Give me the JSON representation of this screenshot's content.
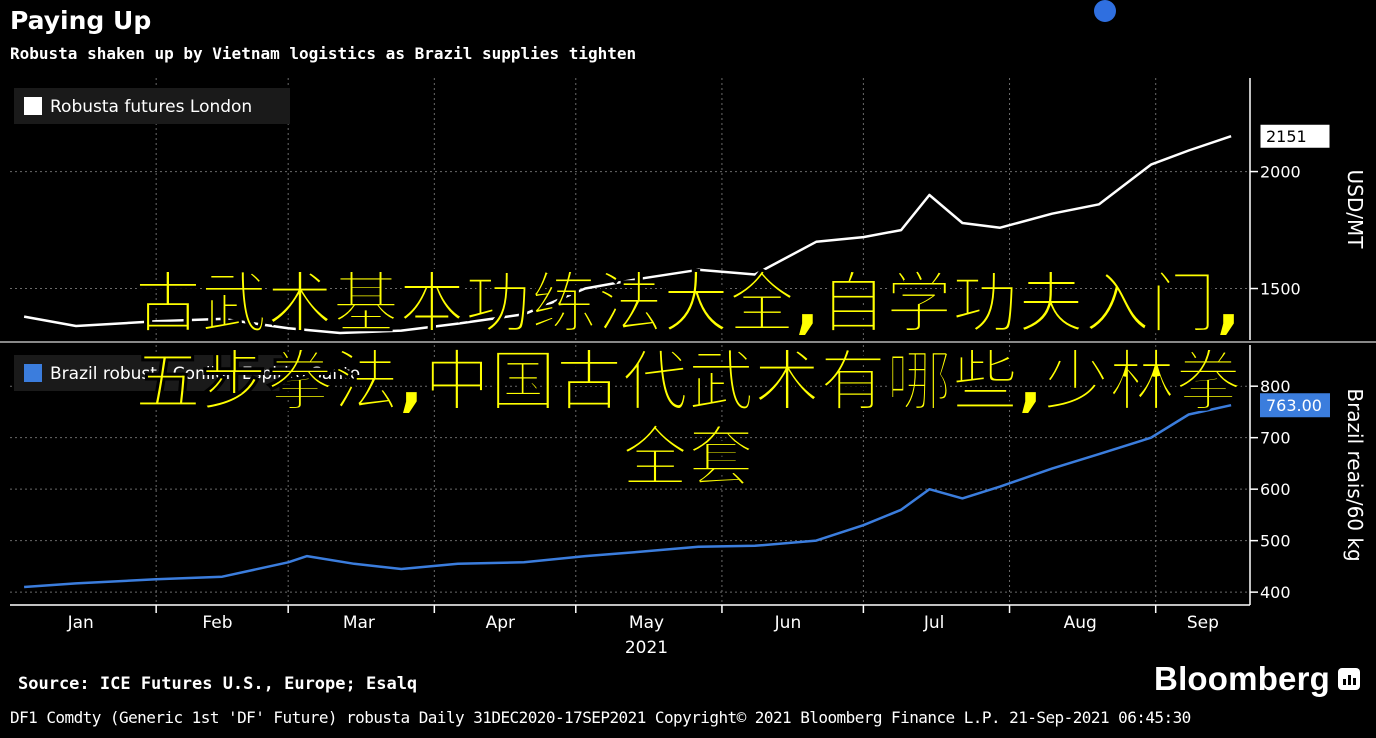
{
  "header": {
    "title": "Paying Up",
    "subtitle": "Robusta shaken up by Vietnam logistics as Brazil supplies tighten"
  },
  "overlay": {
    "line1": "古武术基本功练法大全,自学功夫入门,",
    "line2": "五步拳法,中国古代武术有哪些,少林拳",
    "line3": "全套"
  },
  "footer": {
    "source": "Source: ICE Futures U.S., Europe; Esalq",
    "brand": "Bloomberg",
    "meta": "DF1 Comdty (Generic 1st 'DF' Future) robusta  Daily 31DEC2020-17SEP2021  Copyright© 2021 Bloomberg Finance L.P.  21-Sep-2021 06:45:30"
  },
  "colors": {
    "background": "#000000",
    "london_line": "#ffffff",
    "brazil_line": "#3b7ddd",
    "overlay_text": "#ffff00",
    "grid": "#6a6a6a"
  },
  "chart_data": [
    {
      "type": "line",
      "legend": "Robusta futures London",
      "ylabel": "USD/MT",
      "yticks": [
        1500,
        2000
      ],
      "ylim": [
        1280,
        2400
      ],
      "last_value_label": "2151",
      "x": [
        "2021-01-04",
        "2021-01-15",
        "2021-02-01",
        "2021-02-15",
        "2021-03-01",
        "2021-03-12",
        "2021-03-25",
        "2021-04-06",
        "2021-04-20",
        "2021-05-03",
        "2021-05-14",
        "2021-05-27",
        "2021-06-08",
        "2021-06-21",
        "2021-07-01",
        "2021-07-09",
        "2021-07-15",
        "2021-07-22",
        "2021-07-30",
        "2021-08-10",
        "2021-08-20",
        "2021-08-31",
        "2021-09-08",
        "2021-09-17"
      ],
      "series": [
        {
          "name": "Robusta futures London",
          "values": [
            1380,
            1340,
            1360,
            1370,
            1330,
            1310,
            1320,
            1350,
            1390,
            1500,
            1540,
            1580,
            1560,
            1700,
            1720,
            1750,
            1900,
            1780,
            1760,
            1820,
            1860,
            2030,
            2090,
            2151
          ]
        }
      ]
    },
    {
      "type": "line",
      "legend": "Brazil robusta Conilon Espirito Santo",
      "ylabel": "Brazil reais/60 kg",
      "yticks": [
        400,
        500,
        600,
        700,
        800
      ],
      "ylim": [
        375,
        880
      ],
      "last_value_label": "763.00",
      "xlabel": "2021",
      "xticks": [
        "Jan",
        "Feb",
        "Mar",
        "Apr",
        "May",
        "Jun",
        "Jul",
        "Aug",
        "Sep"
      ],
      "x": [
        "2021-01-04",
        "2021-01-15",
        "2021-02-01",
        "2021-02-15",
        "2021-03-01",
        "2021-03-05",
        "2021-03-15",
        "2021-03-25",
        "2021-04-06",
        "2021-04-20",
        "2021-05-03",
        "2021-05-14",
        "2021-05-27",
        "2021-06-08",
        "2021-06-21",
        "2021-07-01",
        "2021-07-09",
        "2021-07-15",
        "2021-07-22",
        "2021-07-30",
        "2021-08-10",
        "2021-08-20",
        "2021-08-31",
        "2021-09-08",
        "2021-09-17"
      ],
      "series": [
        {
          "name": "Brazil robusta Conilon Espirito Santo",
          "values": [
            410,
            417,
            425,
            430,
            458,
            470,
            455,
            445,
            455,
            458,
            470,
            478,
            488,
            490,
            500,
            530,
            560,
            600,
            582,
            605,
            640,
            668,
            700,
            745,
            763
          ]
        }
      ]
    }
  ]
}
